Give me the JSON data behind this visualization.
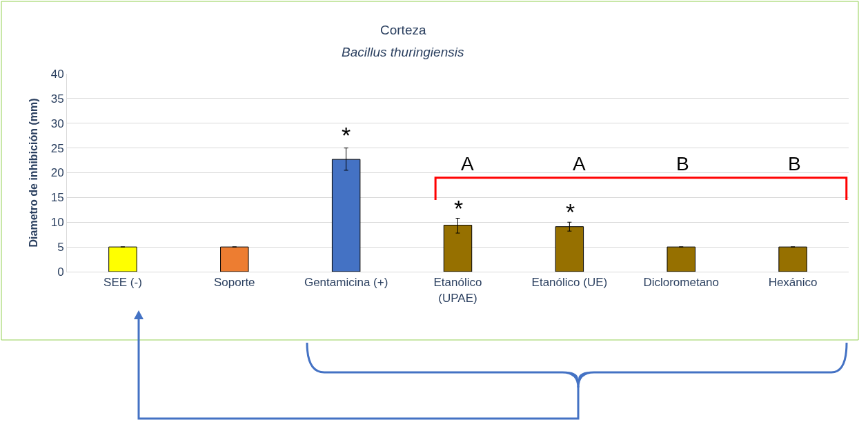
{
  "chart_data": {
    "type": "bar",
    "title": "Corteza",
    "subtitle": "Bacillus thuringiensis",
    "ylabel": "Diametro de inhibición (mm)",
    "categories": [
      "SEE (-)",
      "Soporte",
      "Gentamicina (+)",
      "Etanólico (UPAE)",
      "Etanólico (UE)",
      "Diclorometano",
      "Hexánico"
    ],
    "values": [
      5,
      5,
      22.7,
      9.4,
      9.1,
      5,
      5
    ],
    "colors": [
      "#ffff00",
      "#ed7d31",
      "#4472c4",
      "#967000",
      "#967000",
      "#967000",
      "#967000"
    ],
    "errors": [
      0,
      0,
      [
        20.5,
        25
      ],
      [
        7.8,
        10.8
      ],
      [
        8.2,
        10
      ],
      0,
      0
    ],
    "ylim": [
      0,
      40
    ],
    "yticks": [
      0,
      5,
      10,
      15,
      20,
      25,
      30,
      35,
      40
    ],
    "grid": "y",
    "legend": false,
    "annotations": [
      "*",
      "*",
      "*",
      "A",
      "A",
      "B",
      "B"
    ]
  }
}
